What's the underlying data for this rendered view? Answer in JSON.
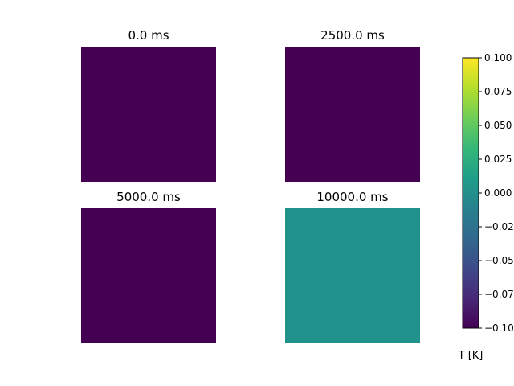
{
  "chart_data": {
    "type": "heatmap",
    "colormap": "viridis",
    "panels": [
      {
        "title": "0.0 ms",
        "value": -0.1,
        "color": "#440154"
      },
      {
        "title": "2500.0 ms",
        "value": -0.1,
        "color": "#440154"
      },
      {
        "title": "5000.0 ms",
        "value": -0.1,
        "color": "#440154"
      },
      {
        "title": "10000.0 ms",
        "value": 0.0,
        "color": "#21918c"
      }
    ],
    "colorbar": {
      "label": "T [K]",
      "range": [
        -0.1,
        0.1
      ],
      "tick_values": [
        -0.1,
        -0.075,
        -0.05,
        -0.025,
        0.0,
        0.025,
        0.05,
        0.075,
        0.1
      ],
      "tick_labels": [
        "−0.100",
        "−0.075",
        "−0.050",
        "−0.025",
        "0.000",
        "0.025",
        "0.050",
        "0.075",
        "0.100"
      ],
      "gradient_colors": [
        "#440154",
        "#482878",
        "#3e4a89",
        "#31688e",
        "#26828e",
        "#1f9e89",
        "#35b779",
        "#6ece58",
        "#b5de2b",
        "#fde725"
      ]
    }
  }
}
